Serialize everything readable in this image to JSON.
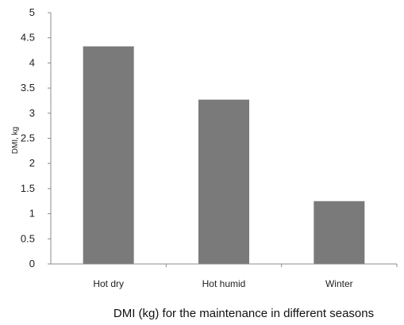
{
  "chart_data": {
    "type": "bar",
    "categories": [
      "Hot dry",
      "Hot humid",
      "Winter"
    ],
    "values": [
      4.33,
      3.27,
      1.25
    ],
    "title": "",
    "xlabel": "DMI (kg) for the maintenance in different seasons",
    "ylabel": "DMI, kg",
    "ylim": [
      0,
      5
    ],
    "yticks": [
      "0",
      "0.5",
      "1",
      "1.5",
      "2",
      "2.5",
      "3",
      "3.5",
      "4",
      "4.5",
      "5"
    ],
    "grid": false,
    "legend": "none",
    "bar_color": "#7a7a7a",
    "axis_color": "#8c8c8c"
  }
}
